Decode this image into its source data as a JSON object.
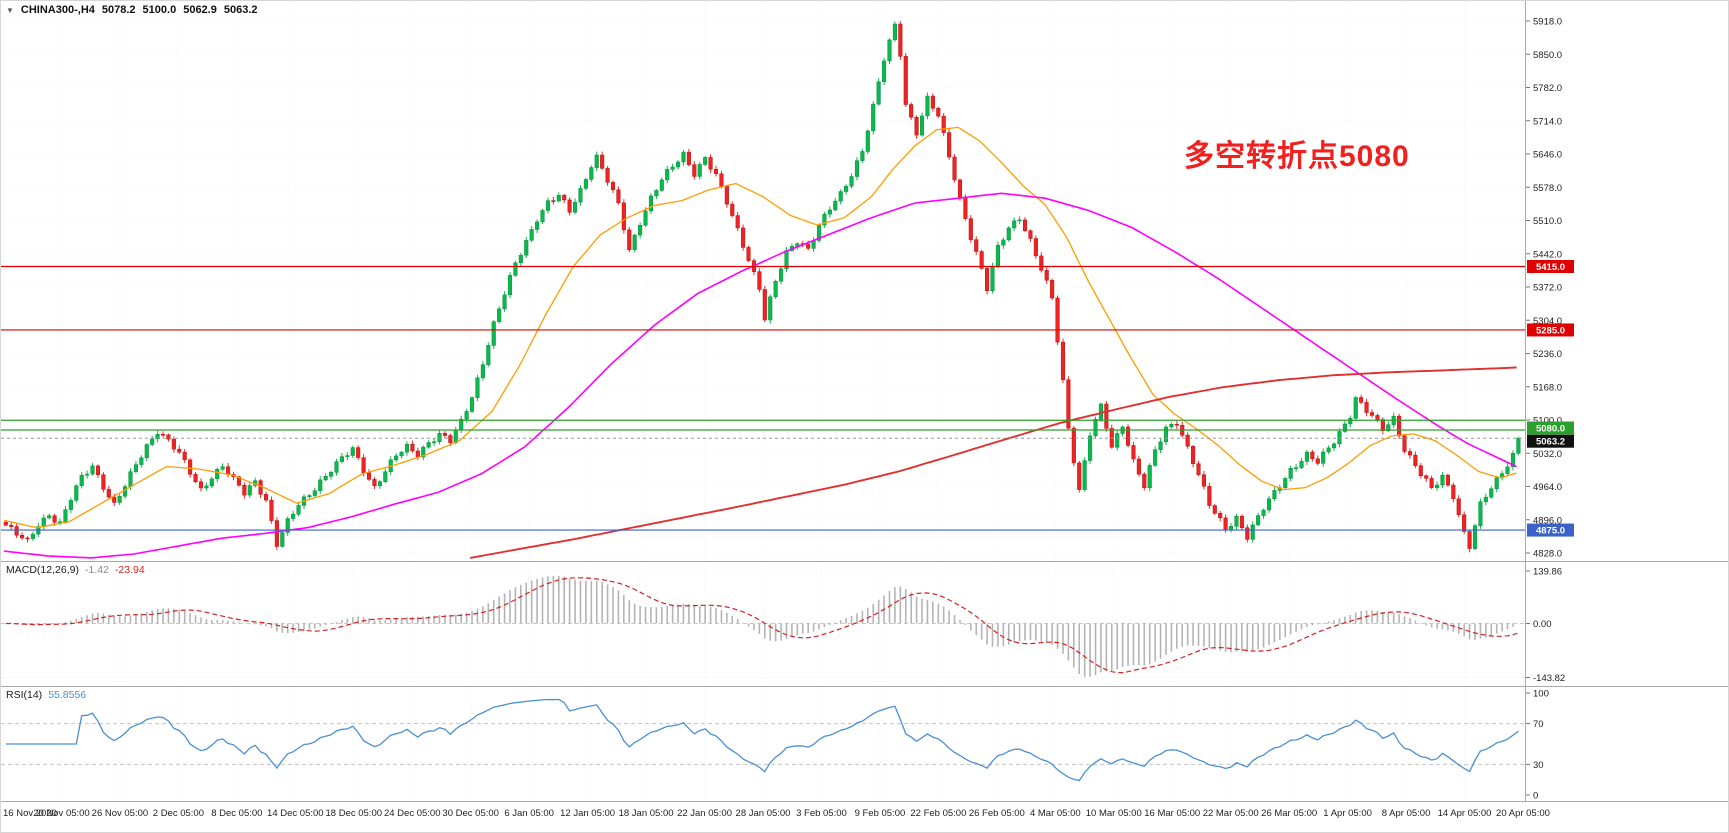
{
  "colors": {
    "up": "#0cb84e",
    "up_border": "#07913c",
    "down": "#ee2424",
    "down_border": "#b51414",
    "ma_fast": "#ff9c00",
    "ma_mid": "#ff00ff",
    "ma_slow": "#e03030",
    "macd_hist": "#b4b4b4",
    "macd_signal": "#d42222",
    "rsi_line": "#4a8fd4",
    "annotation": "#f21f1f",
    "axis_text": "#222222",
    "grid": "#eeeeee",
    "separator": "#a9a9a9"
  },
  "chart_data": [
    {
      "type": "candlestick",
      "title": "CHINA300-,H4",
      "ohlc_line": {
        "open": "5078.2",
        "high": "5100.0",
        "low": "5062.9",
        "close": "5063.2"
      },
      "annotation": {
        "text": "多空转折点5080"
      },
      "ylim": [
        4828,
        5918
      ],
      "y_tick_labels": [
        "5918.0",
        "5850.0",
        "5782.0",
        "5714.0",
        "5646.0",
        "5578.0",
        "5510.0",
        "5442.0",
        "5372.0",
        "5304.0",
        "5236.0",
        "5168.0",
        "5100.0",
        "5032.0",
        "4964.0",
        "4896.0",
        "4828.0"
      ],
      "x_tick_labels": [
        "16 Nov 2020",
        "20 Nov 05:00",
        "26 Nov 05:00",
        "2 Dec 05:00",
        "8 Dec 05:00",
        "14 Dec 05:00",
        "18 Dec 05:00",
        "24 Dec 05:00",
        "30 Dec 05:00",
        "6 Jan 05:00",
        "12 Jan 05:00",
        "18 Jan 05:00",
        "22 Jan 05:00",
        "28 Jan 05:00",
        "3 Feb 05:00",
        "9 Feb 05:00",
        "22 Feb 05:00",
        "26 Feb 05:00",
        "4 Mar 05:00",
        "10 Mar 05:00",
        "16 Mar 05:00",
        "22 Mar 05:00",
        "26 Mar 05:00",
        "1 Apr 05:00",
        "8 Apr 05:00",
        "14 Apr 05:00",
        "20 Apr 05:00"
      ],
      "n_bars": 280,
      "current_price": 5063.2,
      "current_price_label": "5063.2",
      "current_price_tag_bg": "#111111",
      "levels": [
        {
          "price": 5415,
          "label": "5415.0",
          "color": "#e00000",
          "tag_dy": 0
        },
        {
          "price": 5285,
          "label": "5285.0",
          "color": "#e00000",
          "tag_dy": 0
        },
        {
          "price": 5100,
          "label": "",
          "color": "#2ca02c",
          "tag_dy": 0
        },
        {
          "price": 5080,
          "label": "5080.0",
          "color": "#2ca02c",
          "tag_dy": -2
        },
        {
          "price": 4875,
          "label": "4875.0",
          "color": "#3a62c8",
          "tag_dy": 0
        }
      ],
      "close_anchors": [
        [
          0,
          4885
        ],
        [
          2,
          4865
        ],
        [
          4,
          4850
        ],
        [
          6,
          4888
        ],
        [
          8,
          4908
        ],
        [
          10,
          4888
        ],
        [
          12,
          4938
        ],
        [
          14,
          4982
        ],
        [
          16,
          5008
        ],
        [
          18,
          4966
        ],
        [
          20,
          4926
        ],
        [
          22,
          4964
        ],
        [
          24,
          5008
        ],
        [
          26,
          5048
        ],
        [
          28,
          5080
        ],
        [
          30,
          5058
        ],
        [
          32,
          5030
        ],
        [
          34,
          4992
        ],
        [
          36,
          4958
        ],
        [
          38,
          4986
        ],
        [
          40,
          5006
        ],
        [
          42,
          4976
        ],
        [
          44,
          4950
        ],
        [
          46,
          4976
        ],
        [
          48,
          4938
        ],
        [
          50,
          4846
        ],
        [
          52,
          4890
        ],
        [
          54,
          4926
        ],
        [
          56,
          4950
        ],
        [
          58,
          4976
        ],
        [
          60,
          4998
        ],
        [
          62,
          5020
        ],
        [
          64,
          5040
        ],
        [
          66,
          5000
        ],
        [
          68,
          4964
        ],
        [
          70,
          4996
        ],
        [
          72,
          5026
        ],
        [
          74,
          5044
        ],
        [
          76,
          5032
        ],
        [
          78,
          5056
        ],
        [
          80,
          5070
        ],
        [
          82,
          5056
        ],
        [
          84,
          5096
        ],
        [
          86,
          5150
        ],
        [
          88,
          5220
        ],
        [
          90,
          5296
        ],
        [
          92,
          5358
        ],
        [
          94,
          5420
        ],
        [
          96,
          5468
        ],
        [
          98,
          5515
        ],
        [
          100,
          5545
        ],
        [
          102,
          5558
        ],
        [
          104,
          5528
        ],
        [
          106,
          5572
        ],
        [
          108,
          5625
        ],
        [
          109,
          5640
        ],
        [
          111,
          5590
        ],
        [
          113,
          5540
        ],
        [
          115,
          5448
        ],
        [
          117,
          5508
        ],
        [
          119,
          5556
        ],
        [
          121,
          5592
        ],
        [
          123,
          5618
        ],
        [
          125,
          5645
        ],
        [
          127,
          5608
        ],
        [
          129,
          5638
        ],
        [
          131,
          5600
        ],
        [
          133,
          5545
        ],
        [
          135,
          5490
        ],
        [
          137,
          5432
        ],
        [
          139,
          5372
        ],
        [
          140,
          5308
        ],
        [
          142,
          5382
        ],
        [
          144,
          5442
        ],
        [
          146,
          5470
        ],
        [
          148,
          5452
        ],
        [
          150,
          5498
        ],
        [
          152,
          5532
        ],
        [
          154,
          5562
        ],
        [
          156,
          5605
        ],
        [
          158,
          5655
        ],
        [
          160,
          5742
        ],
        [
          162,
          5838
        ],
        [
          164,
          5908
        ],
        [
          165,
          5852
        ],
        [
          166,
          5748
        ],
        [
          168,
          5692
        ],
        [
          170,
          5758
        ],
        [
          172,
          5722
        ],
        [
          174,
          5640
        ],
        [
          176,
          5555
        ],
        [
          178,
          5478
        ],
        [
          180,
          5408
        ],
        [
          181,
          5368
        ],
        [
          183,
          5452
        ],
        [
          185,
          5495
        ],
        [
          187,
          5518
        ],
        [
          189,
          5468
        ],
        [
          191,
          5408
        ],
        [
          193,
          5348
        ],
        [
          195,
          5180
        ],
        [
          196,
          5085
        ],
        [
          198,
          4958
        ],
        [
          200,
          5072
        ],
        [
          202,
          5125
        ],
        [
          204,
          5045
        ],
        [
          206,
          5092
        ],
        [
          208,
          5018
        ],
        [
          210,
          4965
        ],
        [
          212,
          5035
        ],
        [
          214,
          5082
        ],
        [
          216,
          5098
        ],
        [
          218,
          5045
        ],
        [
          220,
          4988
        ],
        [
          222,
          4925
        ],
        [
          225,
          4878
        ],
        [
          227,
          4902
        ],
        [
          229,
          4862
        ],
        [
          232,
          4918
        ],
        [
          235,
          4968
        ],
        [
          237,
          5000
        ],
        [
          240,
          5028
        ],
        [
          242,
          5012
        ],
        [
          245,
          5058
        ],
        [
          248,
          5112
        ],
        [
          249,
          5145
        ],
        [
          251,
          5118
        ],
        [
          254,
          5082
        ],
        [
          256,
          5106
        ],
        [
          258,
          5042
        ],
        [
          261,
          4988
        ],
        [
          263,
          4958
        ],
        [
          265,
          4986
        ],
        [
          267,
          4948
        ],
        [
          269,
          4868
        ],
        [
          270,
          4840
        ],
        [
          272,
          4924
        ],
        [
          274,
          4962
        ],
        [
          276,
          4995
        ],
        [
          278,
          5030
        ],
        [
          279,
          5063
        ]
      ],
      "series": [
        {
          "name": "ma-fast-line",
          "color": "#ff9c00",
          "anchors": [
            [
              0,
              4895
            ],
            [
              6,
              4880
            ],
            [
              12,
              4892
            ],
            [
              18,
              4930
            ],
            [
              24,
              4968
            ],
            [
              30,
              5005
            ],
            [
              36,
              5000
            ],
            [
              42,
              4988
            ],
            [
              48,
              4962
            ],
            [
              54,
              4930
            ],
            [
              60,
              4950
            ],
            [
              66,
              4990
            ],
            [
              72,
              5008
            ],
            [
              78,
              5030
            ],
            [
              84,
              5058
            ],
            [
              90,
              5118
            ],
            [
              95,
              5210
            ],
            [
              100,
              5318
            ],
            [
              105,
              5415
            ],
            [
              110,
              5480
            ],
            [
              115,
              5515
            ],
            [
              120,
              5540
            ],
            [
              125,
              5550
            ],
            [
              130,
              5572
            ],
            [
              135,
              5585
            ],
            [
              140,
              5558
            ],
            [
              145,
              5520
            ],
            [
              150,
              5500
            ],
            [
              155,
              5515
            ],
            [
              160,
              5558
            ],
            [
              164,
              5615
            ],
            [
              168,
              5662
            ],
            [
              172,
              5695
            ],
            [
              176,
              5700
            ],
            [
              180,
              5672
            ],
            [
              184,
              5628
            ],
            [
              188,
              5580
            ],
            [
              192,
              5542
            ],
            [
              196,
              5475
            ],
            [
              200,
              5385
            ],
            [
              204,
              5305
            ],
            [
              208,
              5225
            ],
            [
              212,
              5152
            ],
            [
              216,
              5112
            ],
            [
              220,
              5082
            ],
            [
              224,
              5048
            ],
            [
              228,
              5008
            ],
            [
              232,
              4975
            ],
            [
              236,
              4958
            ],
            [
              240,
              4962
            ],
            [
              244,
              4982
            ],
            [
              248,
              5012
            ],
            [
              252,
              5048
            ],
            [
              256,
              5068
            ],
            [
              260,
              5072
            ],
            [
              264,
              5058
            ],
            [
              268,
              5028
            ],
            [
              272,
              4995
            ],
            [
              276,
              4982
            ],
            [
              279,
              4992
            ]
          ]
        },
        {
          "name": "ma-mid-line",
          "color": "#ff00ff",
          "anchors": [
            [
              0,
              4832
            ],
            [
              8,
              4822
            ],
            [
              16,
              4818
            ],
            [
              24,
              4826
            ],
            [
              32,
              4842
            ],
            [
              40,
              4858
            ],
            [
              48,
              4868
            ],
            [
              56,
              4880
            ],
            [
              64,
              4902
            ],
            [
              72,
              4928
            ],
            [
              80,
              4952
            ],
            [
              88,
              4990
            ],
            [
              96,
              5045
            ],
            [
              104,
              5125
            ],
            [
              112,
              5215
            ],
            [
              120,
              5295
            ],
            [
              128,
              5360
            ],
            [
              136,
              5405
            ],
            [
              144,
              5445
            ],
            [
              152,
              5480
            ],
            [
              160,
              5515
            ],
            [
              168,
              5545
            ],
            [
              176,
              5555
            ],
            [
              184,
              5565
            ],
            [
              192,
              5555
            ],
            [
              200,
              5530
            ],
            [
              208,
              5495
            ],
            [
              216,
              5445
            ],
            [
              224,
              5390
            ],
            [
              232,
              5330
            ],
            [
              240,
              5270
            ],
            [
              248,
              5210
            ],
            [
              256,
              5150
            ],
            [
              264,
              5092
            ],
            [
              270,
              5052
            ],
            [
              279,
              5005
            ]
          ]
        },
        {
          "name": "ma-slow-line",
          "color": "#e03030",
          "anchors": [
            [
              86,
              4818
            ],
            [
              95,
              4836
            ],
            [
              105,
              4856
            ],
            [
              115,
              4878
            ],
            [
              125,
              4900
            ],
            [
              135,
              4922
            ],
            [
              145,
              4945
            ],
            [
              155,
              4968
            ],
            [
              165,
              4995
            ],
            [
              175,
              5028
            ],
            [
              185,
              5062
            ],
            [
              195,
              5095
            ],
            [
              205,
              5122
            ],
            [
              215,
              5148
            ],
            [
              225,
              5168
            ],
            [
              235,
              5182
            ],
            [
              245,
              5192
            ],
            [
              255,
              5198
            ],
            [
              265,
              5202
            ],
            [
              279,
              5208
            ]
          ]
        }
      ]
    },
    {
      "type": "macd_histogram",
      "label": "MACD(12,26,9)",
      "value_main": "-1.42",
      "value_signal": "-23.94",
      "params": [
        12,
        26,
        9
      ],
      "ylim": [
        -143.82,
        139.86
      ],
      "y_tick_labels": [
        "139.86",
        "0.00",
        "-143.82"
      ],
      "axis_values": [
        139.86,
        0,
        -143.82
      ]
    },
    {
      "type": "line",
      "label": "RSI(14)",
      "value": "55.8556",
      "period": 14,
      "ylim": [
        0,
        100
      ],
      "levels": [
        70,
        30
      ],
      "y_tick_labels": [
        "100",
        "70",
        "30",
        "0"
      ],
      "axis_values": [
        100,
        70,
        30,
        0
      ]
    }
  ]
}
